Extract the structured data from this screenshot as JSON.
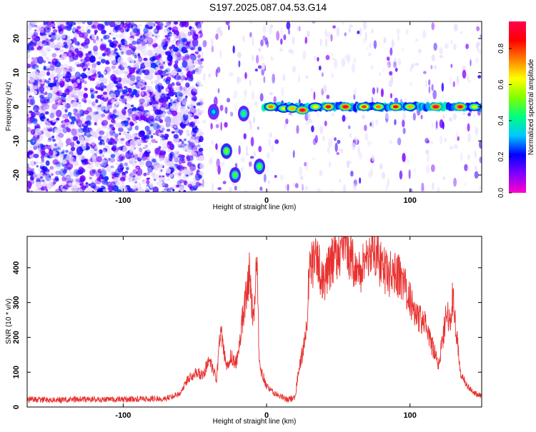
{
  "title": "S197.2025.087.04.53.G14",
  "colors": {
    "snr_line": "#e8312f",
    "spectrogram_low": "#e6d6ff",
    "spectrogram_mid": "#7a22e8",
    "background": "#ffffff"
  },
  "chart_data": [
    {
      "type": "heatmap",
      "name": "spectrogram",
      "xlabel": "Height of straight line (km)",
      "ylabel": "Frequency (Hz)",
      "xlim": [
        -167,
        150
      ],
      "ylim": [
        -25,
        25
      ],
      "x_ticks": [
        -100,
        0,
        100
      ],
      "y_ticks": [
        -20,
        -10,
        0,
        10,
        20
      ],
      "colorbar": {
        "label": "Normalized spectral amplitude",
        "range": [
          0,
          0.95
        ],
        "ticks": [
          0.0,
          0.2,
          0.4,
          0.6,
          0.8
        ],
        "colormap": [
          "#ff00c8",
          "#8000ff",
          "#0000ff",
          "#00c8ff",
          "#00ff80",
          "#80ff00",
          "#ffff00",
          "#ff8000",
          "#ff0000",
          "#ff0050"
        ]
      },
      "noise_region_x": [
        -167,
        -45
      ],
      "signal_band": {
        "x": [
          -2,
          150
        ],
        "frequency": 0,
        "half_width": 1.3
      },
      "hot_spots": [
        {
          "x": 3,
          "f": 0,
          "amp": 0.75
        },
        {
          "x": 12,
          "f": -0.5,
          "amp": 0.6
        },
        {
          "x": 18,
          "f": -0.5,
          "amp": 0.7
        },
        {
          "x": 25,
          "f": -1,
          "amp": 0.92
        },
        {
          "x": 34,
          "f": 0,
          "amp": 0.65
        },
        {
          "x": 43,
          "f": 0,
          "amp": 0.85
        },
        {
          "x": 55,
          "f": 0,
          "amp": 0.92
        },
        {
          "x": 68,
          "f": 0,
          "amp": 0.8
        },
        {
          "x": 78,
          "f": 0,
          "amp": 0.75
        },
        {
          "x": 90,
          "f": 0,
          "amp": 0.85
        },
        {
          "x": 100,
          "f": 0,
          "amp": 0.7
        },
        {
          "x": 118,
          "f": 0,
          "amp": 0.95
        },
        {
          "x": 135,
          "f": 0,
          "amp": 0.9
        },
        {
          "x": 145,
          "f": 0,
          "amp": 0.6
        }
      ],
      "side_blobs": [
        {
          "x": -37,
          "f": -1.5,
          "amp": 0.35
        },
        {
          "x": -28,
          "f": -13,
          "amp": 0.55
        },
        {
          "x": -22,
          "f": -20,
          "amp": 0.5
        },
        {
          "x": -16,
          "f": -2,
          "amp": 0.45
        },
        {
          "x": -5,
          "f": -17.5,
          "amp": 0.5
        }
      ]
    },
    {
      "type": "line",
      "name": "snr",
      "xlabel": "Height of straight line (km)",
      "ylabel": "SNR (10 * v/v)",
      "xlim": [
        -167,
        150
      ],
      "ylim": [
        0,
        490
      ],
      "x_ticks": [
        -100,
        0,
        100
      ],
      "y_ticks": [
        0,
        100,
        200,
        300,
        400
      ],
      "series": [
        {
          "x": [
            -167,
            -150,
            -130,
            -110,
            -90,
            -70,
            -60,
            -55,
            -50,
            -45,
            -40,
            -35,
            -32,
            -28,
            -25,
            -22,
            -20,
            -16,
            -12,
            -9,
            -7,
            -5,
            0,
            5,
            10,
            15,
            20,
            22,
            24,
            26,
            28,
            30,
            35,
            40,
            45,
            50,
            55,
            60,
            65,
            70,
            75,
            80,
            85,
            90,
            95,
            100,
            105,
            110,
            115,
            120,
            125,
            128,
            130,
            135,
            140,
            145,
            150
          ],
          "y": [
            22,
            20,
            22,
            21,
            23,
            24,
            40,
            80,
            100,
            90,
            130,
            80,
            220,
            110,
            150,
            120,
            150,
            280,
            380,
            240,
            450,
            120,
            60,
            40,
            30,
            20,
            30,
            100,
            130,
            180,
            250,
            400,
            420,
            360,
            410,
            450,
            470,
            420,
            380,
            440,
            460,
            400,
            380,
            390,
            360,
            310,
            260,
            240,
            180,
            120,
            260,
            260,
            320,
            100,
            60,
            40,
            30
          ]
        }
      ]
    }
  ]
}
